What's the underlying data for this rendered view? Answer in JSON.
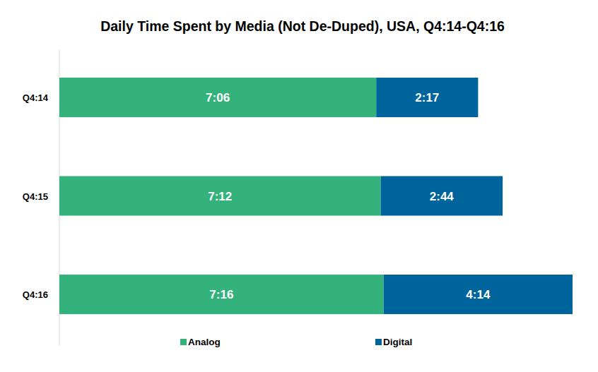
{
  "chart_data": {
    "type": "bar",
    "title": "Daily Time Spent by Media (Not De-Duped), USA, Q4:14-Q4:16",
    "categories": [
      "Q4:14",
      "Q4:15",
      "Q4:16"
    ],
    "series": [
      {
        "name": "Analog",
        "color": "#34b27b",
        "values": [
          426,
          432,
          436
        ],
        "value_labels": [
          "7:06",
          "7:12",
          "7:16"
        ]
      },
      {
        "name": "Digital",
        "color": "#00649c",
        "values": [
          137,
          164,
          254
        ],
        "value_labels": [
          "2:17",
          "2:44",
          "4:14"
        ]
      }
    ],
    "xlim": [
      0,
      690
    ],
    "orientation": "horizontal",
    "stacked": true,
    "data_labels": true,
    "legend": "bottom",
    "tick_labels": "y",
    "grid": false
  }
}
